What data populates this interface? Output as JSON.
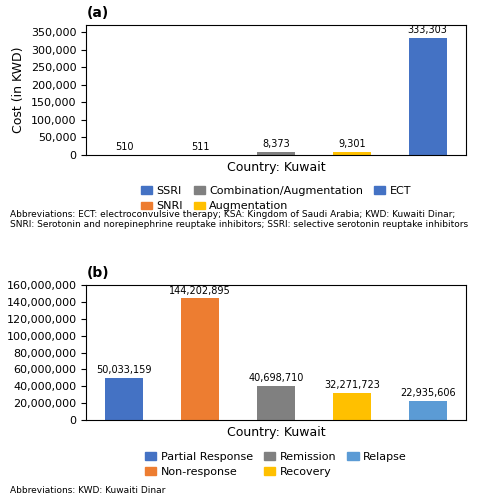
{
  "chart_data": [
    {
      "type": "bar",
      "title": "(a)",
      "categories": [
        "SSRI",
        "SNRI",
        "Combination/Augmentation",
        "Augmentation",
        "ECT"
      ],
      "values": [
        510,
        511,
        8373,
        9301,
        333303
      ],
      "value_labels": [
        "510",
        "511",
        "8,373",
        "9,301",
        "333,303"
      ],
      "data_labels": true,
      "colors": [
        "#4472c4",
        "#ed7d31",
        "#808080",
        "#ffc000",
        "#4472c4"
      ],
      "ylabel": "Cost (in KWD)",
      "xlabel": "Country: Kuwait",
      "ylim": [
        0,
        370000
      ],
      "yticks": [
        0,
        {
          "value": 50000,
          "label": "50,000"
        },
        {
          "value": 100000,
          "label": "100,000"
        },
        {
          "value": 150000,
          "label": "150,000"
        },
        {
          "value": 200000,
          "label": "200,000"
        },
        {
          "value": 250000,
          "label": "250,000"
        },
        {
          "value": 300000,
          "label": "300,000"
        },
        {
          "value": 350000,
          "label": "350,000"
        }
      ],
      "tick_labels": "y",
      "legend": "upper center",
      "annotations": [
        "Abbreviations: ECT: electroconvulsive therapy; KSA: Kingdom of Saudi Arabia; KWD: Kuwaiti Dinar; SNRI: Serotonin and norepinephrine reuptake inhibitors; SSRI: selective serotonin reuptake inhibitors"
      ]
    },
    {
      "type": "bar",
      "title": "(b)",
      "categories": [
        "Partial Response",
        "Non-response",
        "Remission",
        "Recovery",
        "Relapse"
      ],
      "values": [
        50033159,
        144202895,
        40698710,
        32271723,
        22935606
      ],
      "value_labels": [
        "50,033,159",
        "144,202,895",
        "40,698,710",
        "32,271,723",
        "22,935,606"
      ],
      "data_labels": true,
      "colors": [
        "#4472c4",
        "#ed7d31",
        "#808080",
        "#ffc000",
        "#5b9bd5"
      ],
      "ylabel": "Cost (in KWD)",
      "xlabel": "Country: Kuwait",
      "ylim": [
        0,
        160000000
      ],
      "yticks": [
        0,
        {
          "value": 20000000,
          "label": "20,000,000"
        },
        {
          "value": 40000000,
          "label": "40,000,000"
        },
        {
          "value": 60000000,
          "label": "60,000,000"
        },
        {
          "value": 80000000,
          "label": "80,000,000"
        },
        {
          "value": 100000000,
          "label": "100,000,000"
        },
        {
          "value": 120000000,
          "label": "120,000,000"
        },
        {
          "value": 140000000,
          "label": "140,000,000"
        },
        {
          "value": 160000000,
          "label": "160,000,000"
        }
      ],
      "tick_labels": "y",
      "legend": "upper center",
      "annotations": [
        "Abbreviations: KWD: Kuwaiti Dinar"
      ]
    }
  ]
}
